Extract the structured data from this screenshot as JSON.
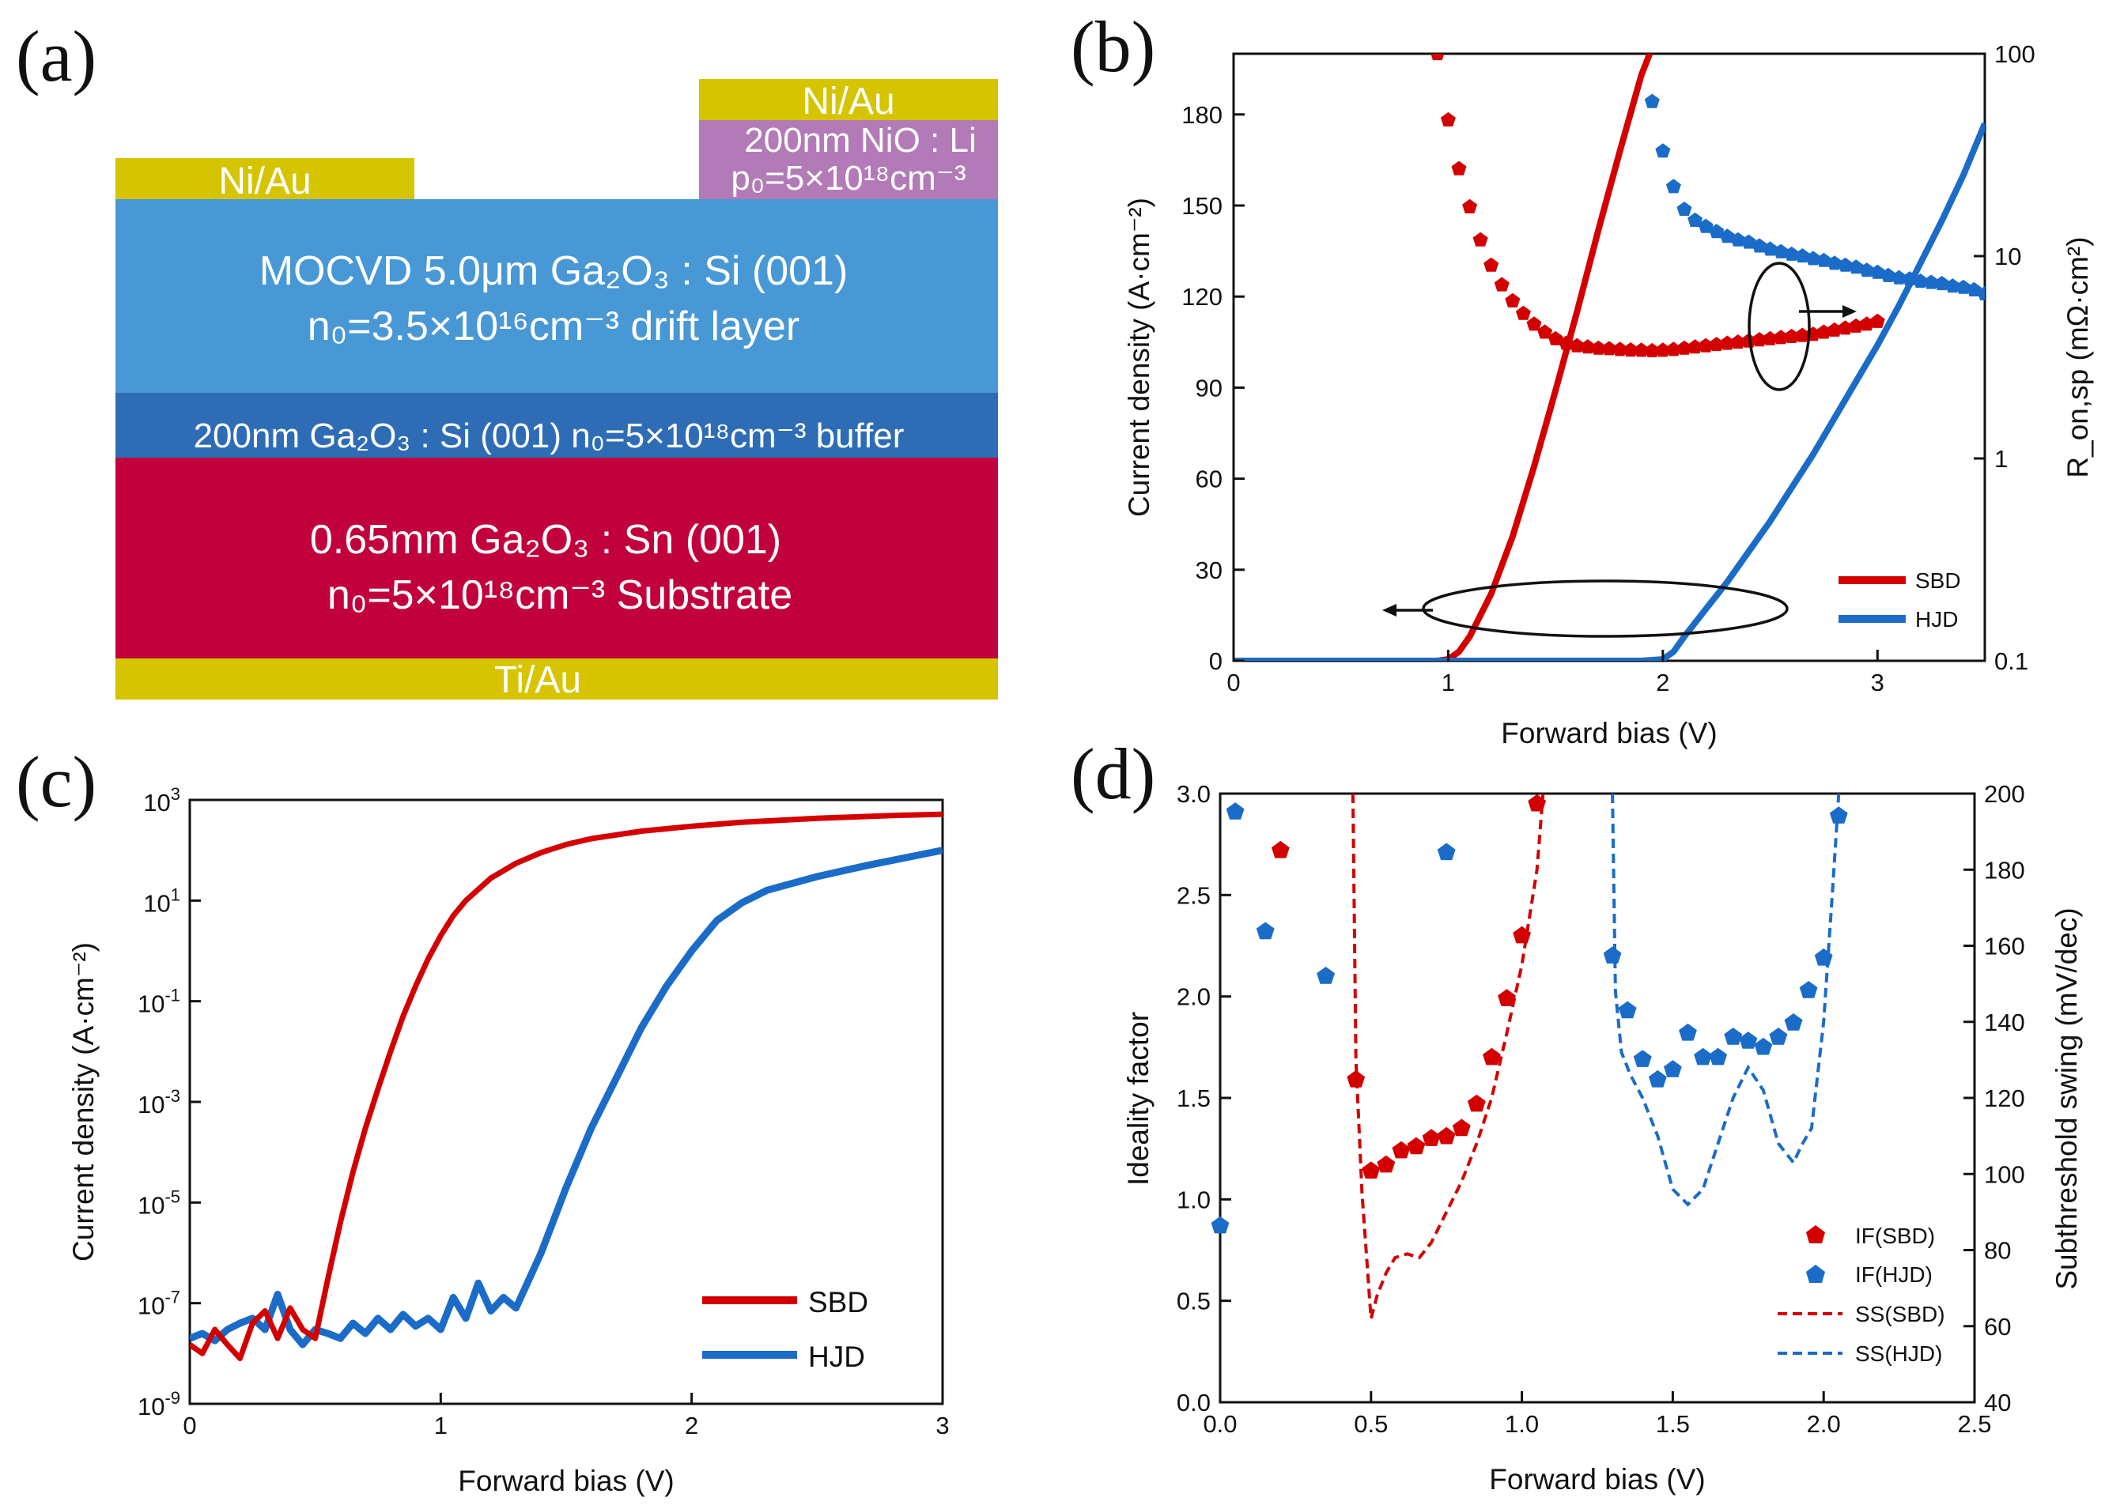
{
  "panels": {
    "a": {
      "label": "(a)",
      "layers": {
        "anode_left_metal": "Ni/Au",
        "anode_right_metal": "Ni/Au",
        "nio": {
          "line1": "200nm NiO : Li",
          "line2": "p₀=5×10¹⁸cm⁻³"
        },
        "drift": {
          "line1": "MOCVD 5.0μm Ga₂O₃ : Si (001)",
          "line2": "n₀=3.5×10¹⁶cm⁻³ drift layer"
        },
        "buffer": {
          "line1": "200nm Ga₂O₃ : Si (001) n₀=5×10¹⁸cm⁻³ buffer"
        },
        "substrate": {
          "line1": "0.65mm Ga₂O₃ : Sn (001)",
          "line2": "n₀=5×10¹⁸cm⁻³ Substrate"
        },
        "cathode_metal": "Ti/Au"
      },
      "colors": {
        "metal": "#d6c400",
        "nio": "#b37ab8",
        "drift": "#4798d4",
        "buffer": "#2e6db5",
        "substrate": "#c2003d"
      }
    },
    "b": {
      "label": "(b)"
    },
    "c": {
      "label": "(c)"
    },
    "d": {
      "label": "(d)"
    }
  },
  "chart_data": [
    {
      "panel": "b",
      "type": "line",
      "xlabel": "Forward bias (V)",
      "ylabel": "Current density (A·cm⁻²)",
      "ylabel2": "R_on,sp (mΩ·cm²)",
      "xlim": [
        0,
        3.5
      ],
      "ylim": [
        0,
        200
      ],
      "y2lim": [
        0.1,
        100
      ],
      "y2scale": "log",
      "xticks": [
        "0",
        "1",
        "2",
        "3"
      ],
      "yticks": [
        "0",
        "30",
        "60",
        "90",
        "120",
        "150",
        "180"
      ],
      "y2ticks": [
        "0.1",
        "1",
        "10",
        "100"
      ],
      "legend": [
        "SBD",
        "HJD"
      ],
      "series": [
        {
          "name": "SBD",
          "axis": "left",
          "style": "line",
          "color": "#d40000",
          "x": [
            0,
            0.95,
            1.0,
            1.05,
            1.1,
            1.2,
            1.3,
            1.4,
            1.5,
            1.6,
            1.7,
            1.8,
            1.9,
            1.95
          ],
          "y": [
            0,
            0,
            0.5,
            3,
            8,
            22,
            41,
            64,
            89,
            115,
            142,
            168,
            193,
            202
          ]
        },
        {
          "name": "HJD",
          "axis": "left",
          "style": "line",
          "color": "#1a6cc8",
          "x": [
            0,
            1.9,
            2.0,
            2.05,
            2.1,
            2.2,
            2.3,
            2.4,
            2.5,
            2.6,
            2.7,
            2.8,
            2.9,
            3.0,
            3.1,
            3.2,
            3.3,
            3.4,
            3.5
          ],
          "y": [
            0,
            0,
            0.5,
            3,
            8,
            17,
            26,
            36,
            46,
            57,
            68,
            80,
            92,
            104,
            117,
            131,
            145,
            160,
            177
          ]
        },
        {
          "name": "SBD R_on,sp",
          "axis": "right",
          "style": "markers",
          "color": "#d40000",
          "x": [
            0.95,
            1.0,
            1.05,
            1.1,
            1.15,
            1.2,
            1.25,
            1.3,
            1.35,
            1.4,
            1.45,
            1.5,
            1.55,
            1.6,
            1.65,
            1.7,
            1.75,
            1.8,
            1.85,
            1.9,
            1.95,
            2.0,
            2.05,
            2.1,
            2.15,
            2.2,
            2.25,
            2.3,
            2.35,
            2.4,
            2.45,
            2.5,
            2.55,
            2.6,
            2.65,
            2.7,
            2.75,
            2.8,
            2.85,
            2.9,
            2.95,
            3.0
          ],
          "y": [
            100,
            47,
            27,
            17.5,
            12,
            9,
            7.2,
            6,
            5.2,
            4.6,
            4.2,
            3.9,
            3.7,
            3.6,
            3.55,
            3.5,
            3.48,
            3.45,
            3.43,
            3.42,
            3.4,
            3.42,
            3.45,
            3.5,
            3.55,
            3.6,
            3.65,
            3.7,
            3.75,
            3.8,
            3.85,
            3.9,
            3.95,
            4.0,
            4.05,
            4.1,
            4.2,
            4.3,
            4.4,
            4.5,
            4.6,
            4.75
          ]
        },
        {
          "name": "HJD R_on,sp",
          "axis": "right",
          "style": "markers",
          "color": "#1a6cc8",
          "x": [
            1.95,
            2.0,
            2.05,
            2.1,
            2.15,
            2.2,
            2.25,
            2.3,
            2.35,
            2.4,
            2.45,
            2.5,
            2.55,
            2.6,
            2.65,
            2.7,
            2.75,
            2.8,
            2.85,
            2.9,
            2.95,
            3.0,
            3.05,
            3.1,
            3.15,
            3.2,
            3.25,
            3.3,
            3.35,
            3.4,
            3.45,
            3.5
          ],
          "y": [
            58,
            33,
            22,
            17,
            15,
            14,
            13.2,
            12.5,
            12,
            11.7,
            11.2,
            10.8,
            10.5,
            10.2,
            10,
            9.7,
            9.5,
            9.2,
            9,
            8.8,
            8.5,
            8.3,
            8,
            7.8,
            7.7,
            7.5,
            7.4,
            7.3,
            7.1,
            7,
            6.8,
            6.5
          ]
        }
      ]
    },
    {
      "panel": "c",
      "type": "line",
      "xlabel": "Forward bias (V)",
      "ylabel": "Current density (A·cm⁻²)",
      "xlim": [
        0,
        3
      ],
      "ylim": [
        1e-09,
        1000
      ],
      "yscale": "log",
      "xticks": [
        "0",
        "1",
        "2",
        "3"
      ],
      "yticks": [
        {
          "base": "10",
          "exp": "3"
        },
        {
          "base": "10",
          "exp": "1"
        },
        {
          "base": "10",
          "exp": "-1"
        },
        {
          "base": "10",
          "exp": "-3"
        },
        {
          "base": "10",
          "exp": "-5"
        },
        {
          "base": "10",
          "exp": "-7"
        },
        {
          "base": "10",
          "exp": "-9"
        }
      ],
      "legend": [
        "SBD",
        "HJD"
      ],
      "series": [
        {
          "name": "SBD",
          "color": "#d40000",
          "x": [
            0,
            0.05,
            0.1,
            0.15,
            0.2,
            0.25,
            0.3,
            0.35,
            0.4,
            0.45,
            0.5,
            0.55,
            0.6,
            0.65,
            0.7,
            0.75,
            0.8,
            0.85,
            0.9,
            0.95,
            1.0,
            1.05,
            1.1,
            1.2,
            1.3,
            1.4,
            1.5,
            1.6,
            1.8,
            2.0,
            2.2,
            2.5,
            2.8,
            3.0
          ],
          "y": [
            1.5e-08,
            1e-08,
            3e-08,
            1.5e-08,
            8e-09,
            4e-08,
            7e-08,
            2e-08,
            8e-08,
            3e-08,
            2e-08,
            3e-07,
            4e-06,
            4e-05,
            0.0003,
            0.0018,
            0.01,
            0.05,
            0.2,
            0.7,
            2,
            5,
            10,
            28,
            55,
            90,
            130,
            170,
            240,
            300,
            360,
            430,
            490,
            520
          ]
        },
        {
          "name": "HJD",
          "color": "#1a6cc8",
          "x": [
            0,
            0.05,
            0.1,
            0.15,
            0.2,
            0.25,
            0.3,
            0.35,
            0.4,
            0.45,
            0.5,
            0.55,
            0.6,
            0.65,
            0.7,
            0.75,
            0.8,
            0.85,
            0.9,
            0.95,
            1.0,
            1.05,
            1.1,
            1.15,
            1.2,
            1.25,
            1.3,
            1.4,
            1.5,
            1.6,
            1.7,
            1.8,
            1.9,
            2.0,
            2.1,
            2.2,
            2.3,
            2.5,
            2.7,
            3.0
          ],
          "y": [
            2e-08,
            2.5e-08,
            1.8e-08,
            3e-08,
            4e-08,
            5e-08,
            3e-08,
            1.5e-07,
            3e-08,
            1.5e-08,
            3e-08,
            2.5e-08,
            2e-08,
            4e-08,
            2.5e-08,
            5e-08,
            3e-08,
            6e-08,
            3.5e-08,
            5e-08,
            3e-08,
            1.3e-07,
            5e-08,
            2.5e-07,
            7e-08,
            1.3e-07,
            8e-08,
            1e-06,
            2e-05,
            0.0003,
            0.003,
            0.03,
            0.2,
            1,
            4,
            9,
            16,
            30,
            50,
            100
          ]
        }
      ]
    },
    {
      "panel": "d",
      "type": "scatter",
      "xlabel": "Forward bias (V)",
      "ylabel": "Ideality factor",
      "ylabel2": "Subthreshold swing (mV/dec)",
      "xlim": [
        0,
        2.5
      ],
      "ylim": [
        0,
        3
      ],
      "y2lim": [
        40,
        200
      ],
      "xticks": [
        "0.0",
        "0.5",
        "1.0",
        "1.5",
        "2.0",
        "2.5"
      ],
      "yticks": [
        "0.0",
        "0.5",
        "1.0",
        "1.5",
        "2.0",
        "2.5",
        "3.0"
      ],
      "y2ticks": [
        "40",
        "60",
        "80",
        "100",
        "120",
        "140",
        "160",
        "180",
        "200"
      ],
      "legend": [
        "IF(SBD)",
        "IF(HJD)",
        "SS(SBD)",
        "SS(HJD)"
      ],
      "series": [
        {
          "name": "IF(SBD)",
          "axis": "left",
          "style": "markers",
          "color": "#d40000",
          "x": [
            0.2,
            0.45,
            0.5,
            0.55,
            0.6,
            0.65,
            0.7,
            0.75,
            0.8,
            0.85,
            0.9,
            0.95,
            1.0,
            1.05
          ],
          "y": [
            2.72,
            1.59,
            1.14,
            1.17,
            1.24,
            1.26,
            1.3,
            1.31,
            1.35,
            1.47,
            1.7,
            1.99,
            2.3,
            2.95
          ]
        },
        {
          "name": "IF(HJD)",
          "axis": "left",
          "style": "markers",
          "color": "#1a6cc8",
          "x": [
            0,
            0.05,
            0.15,
            0.35,
            0.75,
            1.3,
            1.35,
            1.4,
            1.45,
            1.5,
            1.55,
            1.6,
            1.65,
            1.7,
            1.75,
            1.8,
            1.85,
            1.9,
            1.95,
            2.0,
            2.05
          ],
          "y": [
            0.87,
            2.91,
            2.32,
            2.1,
            2.71,
            2.2,
            1.93,
            1.69,
            1.59,
            1.64,
            1.82,
            1.7,
            1.7,
            1.8,
            1.78,
            1.75,
            1.8,
            1.87,
            2.03,
            2.19,
            2.89
          ]
        },
        {
          "name": "SS(SBD)",
          "axis": "right",
          "style": "dashed",
          "color": "#d40000",
          "x": [
            0.44,
            0.45,
            0.47,
            0.5,
            0.52,
            0.55,
            0.58,
            0.62,
            0.66,
            0.7,
            0.75,
            0.8,
            0.85,
            0.9,
            0.95,
            1.0,
            1.05,
            1.07
          ],
          "y": [
            200,
            130,
            95,
            62,
            68,
            74,
            78,
            79,
            78,
            82,
            90,
            98,
            108,
            120,
            137,
            155,
            180,
            200
          ]
        },
        {
          "name": "SS(HJD)",
          "axis": "right",
          "style": "dashed",
          "color": "#1a6cc8",
          "x": [
            1.3,
            1.31,
            1.33,
            1.36,
            1.4,
            1.45,
            1.5,
            1.55,
            1.6,
            1.65,
            1.7,
            1.75,
            1.8,
            1.85,
            1.9,
            1.93,
            1.96,
            2.0,
            2.03,
            2.05
          ],
          "y": [
            200,
            148,
            132,
            126,
            120,
            110,
            96,
            92,
            96,
            108,
            120,
            128,
            122,
            108,
            103,
            108,
            112,
            140,
            175,
            200
          ]
        }
      ]
    }
  ]
}
